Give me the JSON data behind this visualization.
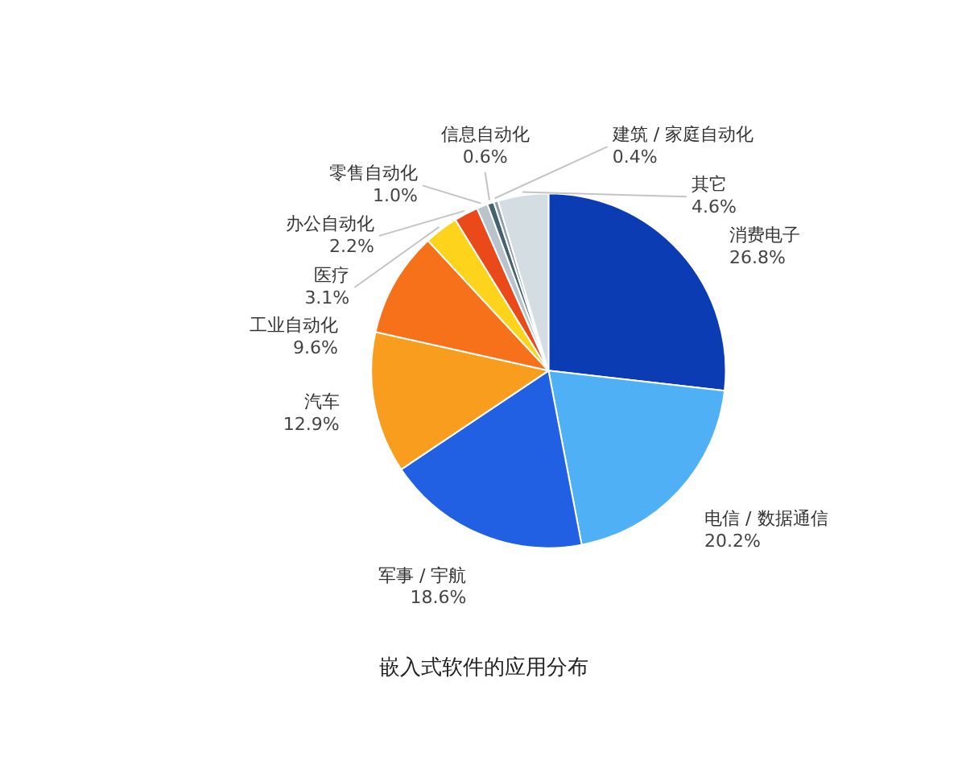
{
  "chart_data": {
    "type": "pie",
    "title": "嵌入式软件的应用分布",
    "categories": [
      "消费电子",
      "电信 / 数据通信",
      "军事 / 宇航",
      "汽车",
      "工业自动化",
      "医疗",
      "办公自动化",
      "零售自动化",
      "信息自动化",
      "建筑 / 家庭自动化",
      "其它"
    ],
    "values": [
      26.8,
      20.2,
      18.6,
      12.9,
      9.6,
      3.1,
      2.2,
      1.0,
      0.6,
      0.4,
      4.6
    ],
    "value_labels": [
      "26.8%",
      "20.2%",
      "18.6%",
      "12.9%",
      "9.6%",
      "3.1%",
      "2.2%",
      "1.0%",
      "0.6%",
      "0.4%",
      "4.6%"
    ],
    "colors": [
      "#0b3cb4",
      "#4fb0f5",
      "#2160e3",
      "#f99d1f",
      "#f7701a",
      "#fdd31c",
      "#ea4a1a",
      "#b8c3cb",
      "#44626f",
      "#8c9ea9",
      "#d3dde2"
    ]
  }
}
